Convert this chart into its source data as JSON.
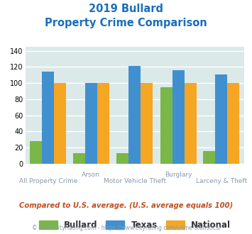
{
  "title_line1": "2019 Bullard",
  "title_line2": "Property Crime Comparison",
  "title_color": "#1a6fba",
  "categories": [
    "All Property Crime",
    "Arson",
    "Motor Vehicle Theft",
    "Burglary",
    "Larceny & Theft"
  ],
  "top_labels": [
    "",
    "Arson",
    "",
    "Burglary",
    ""
  ],
  "bottom_labels": [
    "All Property Crime",
    "",
    "Motor Vehicle Theft",
    "",
    "Larceny & Theft"
  ],
  "bullard": [
    28,
    13,
    13,
    95,
    16
  ],
  "texas": [
    114,
    100,
    121,
    116,
    111
  ],
  "national": [
    100,
    100,
    100,
    100,
    100
  ],
  "bullard_color": "#7ab648",
  "texas_color": "#4090d0",
  "national_color": "#f5a623",
  "ylim": [
    0,
    145
  ],
  "yticks": [
    0,
    20,
    40,
    60,
    80,
    100,
    120,
    140
  ],
  "background_color": "#dce9e9",
  "grid_color": "#ffffff",
  "note": "Compared to U.S. average. (U.S. average equals 100)",
  "footer": "© 2025 CityRating.com - https://www.cityrating.com/crime-statistics/",
  "note_color": "#c05020",
  "footer_color": "#8899aa",
  "legend_labels": [
    "Bullard",
    "Texas",
    "National"
  ],
  "bar_width": 0.22,
  "x_positions": [
    0,
    0.78,
    1.58,
    2.38,
    3.16
  ]
}
